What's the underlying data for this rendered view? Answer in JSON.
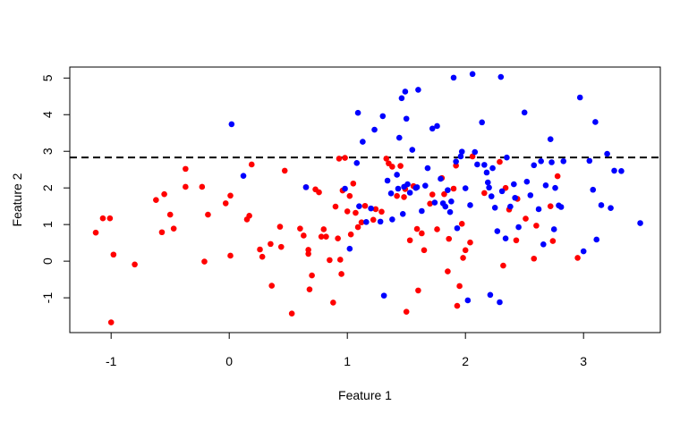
{
  "chart_data": {
    "type": "scatter",
    "title": "",
    "xlabel": "Feature 1",
    "ylabel": "Feature 2",
    "xlim": [
      -1.35,
      3.65
    ],
    "ylim": [
      -1.95,
      5.3
    ],
    "xticks": [
      -1,
      0,
      1,
      2,
      3
    ],
    "yticks": [
      -1,
      0,
      1,
      2,
      3,
      4,
      5
    ],
    "grid": false,
    "legend": "none",
    "hline": {
      "y": 2.83,
      "style": "dashed",
      "color": "#000000"
    },
    "series": [
      {
        "color": "#ff0000",
        "points": [
          [
            -1.13,
            0.78
          ],
          [
            -1.07,
            1.17
          ],
          [
            -1.01,
            1.17
          ],
          [
            -0.98,
            0.18
          ],
          [
            -1.0,
            -1.67
          ],
          [
            -0.8,
            -0.09
          ],
          [
            -0.62,
            1.67
          ],
          [
            -0.57,
            0.79
          ],
          [
            -0.55,
            1.83
          ],
          [
            -0.5,
            1.27
          ],
          [
            -0.47,
            0.89
          ],
          [
            -0.37,
            2.52
          ],
          [
            -0.37,
            2.03
          ],
          [
            -0.23,
            2.03
          ],
          [
            -0.21,
            -0.01
          ],
          [
            -0.18,
            1.27
          ],
          [
            -0.03,
            1.58
          ],
          [
            0.01,
            1.79
          ],
          [
            0.01,
            0.15
          ],
          [
            0.15,
            1.14
          ],
          [
            0.17,
            1.24
          ],
          [
            0.19,
            2.64
          ],
          [
            0.26,
            0.32
          ],
          [
            0.28,
            0.12
          ],
          [
            0.35,
            0.47
          ],
          [
            0.36,
            -0.67
          ],
          [
            0.43,
            0.94
          ],
          [
            0.44,
            0.39
          ],
          [
            0.47,
            2.47
          ],
          [
            0.53,
            -1.43
          ],
          [
            0.6,
            0.89
          ],
          [
            0.63,
            0.7
          ],
          [
            0.65,
            2.02
          ],
          [
            0.67,
            0.31
          ],
          [
            0.67,
            0.2
          ],
          [
            0.68,
            -0.77
          ],
          [
            0.7,
            -0.39
          ],
          [
            0.73,
            1.96
          ],
          [
            0.76,
            1.88
          ],
          [
            0.78,
            0.67
          ],
          [
            0.8,
            0.87
          ],
          [
            0.82,
            0.67
          ],
          [
            0.85,
            0.03
          ],
          [
            0.88,
            -1.13
          ],
          [
            0.9,
            1.49
          ],
          [
            0.92,
            0.62
          ],
          [
            0.93,
            2.8
          ],
          [
            0.94,
            0.04
          ],
          [
            0.95,
            -0.35
          ],
          [
            0.96,
            1.93
          ],
          [
            0.98,
            2.82
          ],
          [
            1.0,
            1.36
          ],
          [
            1.02,
            1.78
          ],
          [
            1.03,
            0.73
          ],
          [
            1.05,
            2.12
          ],
          [
            1.07,
            1.32
          ],
          [
            1.09,
            0.93
          ],
          [
            1.12,
            1.06
          ],
          [
            1.15,
            1.51
          ],
          [
            1.22,
            1.13
          ],
          [
            1.24,
            1.42
          ],
          [
            1.29,
            1.35
          ],
          [
            1.33,
            2.8
          ],
          [
            1.35,
            2.67
          ],
          [
            1.38,
            2.58
          ],
          [
            1.42,
            1.78
          ],
          [
            1.45,
            2.6
          ],
          [
            1.48,
            1.75
          ],
          [
            1.49,
            1.97
          ],
          [
            1.5,
            -1.38
          ],
          [
            1.53,
            0.57
          ],
          [
            1.56,
            2.05
          ],
          [
            1.59,
            0.88
          ],
          [
            1.6,
            -0.8
          ],
          [
            1.63,
            0.76
          ],
          [
            1.65,
            0.3
          ],
          [
            1.7,
            1.57
          ],
          [
            1.72,
            1.82
          ],
          [
            1.76,
            0.87
          ],
          [
            1.8,
            2.27
          ],
          [
            1.82,
            1.83
          ],
          [
            1.85,
            -0.28
          ],
          [
            1.86,
            0.61
          ],
          [
            1.9,
            1.98
          ],
          [
            1.92,
            2.61
          ],
          [
            1.93,
            -1.22
          ],
          [
            1.95,
            -0.68
          ],
          [
            1.97,
            1.02
          ],
          [
            1.98,
            0.09
          ],
          [
            2.0,
            0.3
          ],
          [
            2.04,
            0.51
          ],
          [
            2.06,
            2.86
          ],
          [
            2.16,
            1.86
          ],
          [
            2.29,
            2.71
          ],
          [
            2.32,
            -0.12
          ],
          [
            2.34,
            2.0
          ],
          [
            2.37,
            1.41
          ],
          [
            2.43,
            0.57
          ],
          [
            2.44,
            1.7
          ],
          [
            2.51,
            1.16
          ],
          [
            2.58,
            0.07
          ],
          [
            2.6,
            0.97
          ],
          [
            2.72,
            1.5
          ],
          [
            2.74,
            0.55
          ],
          [
            2.78,
            2.32
          ],
          [
            2.95,
            0.09
          ]
        ]
      },
      {
        "color": "#0000ff",
        "points": [
          [
            0.02,
            3.74
          ],
          [
            0.12,
            2.33
          ],
          [
            0.65,
            2.02
          ],
          [
            0.98,
            1.98
          ],
          [
            1.02,
            0.34
          ],
          [
            1.08,
            2.68
          ],
          [
            1.09,
            4.05
          ],
          [
            1.1,
            1.5
          ],
          [
            1.13,
            3.26
          ],
          [
            1.16,
            1.07
          ],
          [
            1.2,
            1.44
          ],
          [
            1.23,
            3.59
          ],
          [
            1.28,
            1.08
          ],
          [
            1.3,
            3.96
          ],
          [
            1.31,
            -0.94
          ],
          [
            1.34,
            2.2
          ],
          [
            1.37,
            1.85
          ],
          [
            1.38,
            1.14
          ],
          [
            1.42,
            2.36
          ],
          [
            1.43,
            1.98
          ],
          [
            1.44,
            3.37
          ],
          [
            1.46,
            4.45
          ],
          [
            1.47,
            1.29
          ],
          [
            1.48,
            2.03
          ],
          [
            1.49,
            4.63
          ],
          [
            1.5,
            3.89
          ],
          [
            1.51,
            2.1
          ],
          [
            1.53,
            1.87
          ],
          [
            1.55,
            3.04
          ],
          [
            1.58,
            2.0
          ],
          [
            1.59,
            2.02
          ],
          [
            1.6,
            4.68
          ],
          [
            1.63,
            1.37
          ],
          [
            1.66,
            2.06
          ],
          [
            1.68,
            2.54
          ],
          [
            1.72,
            3.62
          ],
          [
            1.74,
            1.6
          ],
          [
            1.76,
            3.69
          ],
          [
            1.79,
            2.25
          ],
          [
            1.81,
            1.58
          ],
          [
            1.83,
            1.49
          ],
          [
            1.85,
            1.94
          ],
          [
            1.87,
            1.34
          ],
          [
            1.88,
            1.63
          ],
          [
            1.9,
            5.01
          ],
          [
            1.92,
            2.72
          ],
          [
            1.93,
            0.9
          ],
          [
            1.96,
            2.86
          ],
          [
            1.97,
            2.99
          ],
          [
            2.0,
            1.99
          ],
          [
            2.02,
            -1.07
          ],
          [
            2.04,
            1.53
          ],
          [
            2.06,
            5.11
          ],
          [
            2.08,
            2.98
          ],
          [
            2.1,
            2.64
          ],
          [
            2.14,
            3.79
          ],
          [
            2.16,
            2.63
          ],
          [
            2.18,
            2.42
          ],
          [
            2.19,
            2.15
          ],
          [
            2.2,
            2.01
          ],
          [
            2.21,
            -0.92
          ],
          [
            2.22,
            1.77
          ],
          [
            2.23,
            2.54
          ],
          [
            2.25,
            1.46
          ],
          [
            2.27,
            0.82
          ],
          [
            2.29,
            -1.12
          ],
          [
            2.3,
            5.03
          ],
          [
            2.31,
            1.91
          ],
          [
            2.34,
            0.62
          ],
          [
            2.35,
            2.83
          ],
          [
            2.38,
            1.49
          ],
          [
            2.41,
            2.1
          ],
          [
            2.42,
            1.73
          ],
          [
            2.45,
            0.93
          ],
          [
            2.5,
            4.06
          ],
          [
            2.52,
            2.17
          ],
          [
            2.55,
            1.8
          ],
          [
            2.58,
            2.62
          ],
          [
            2.62,
            1.42
          ],
          [
            2.64,
            2.73
          ],
          [
            2.66,
            0.46
          ],
          [
            2.68,
            2.07
          ],
          [
            2.72,
            3.33
          ],
          [
            2.73,
            2.7
          ],
          [
            2.75,
            0.87
          ],
          [
            2.76,
            2.0
          ],
          [
            2.79,
            1.52
          ],
          [
            2.81,
            1.48
          ],
          [
            2.83,
            2.73
          ],
          [
            2.97,
            4.47
          ],
          [
            3.0,
            0.27
          ],
          [
            3.05,
            2.74
          ],
          [
            3.08,
            1.95
          ],
          [
            3.1,
            3.8
          ],
          [
            3.11,
            0.59
          ],
          [
            3.15,
            1.53
          ],
          [
            3.2,
            2.93
          ],
          [
            3.23,
            1.45
          ],
          [
            3.26,
            2.47
          ],
          [
            3.32,
            2.46
          ],
          [
            3.48,
            1.04
          ]
        ]
      }
    ]
  }
}
